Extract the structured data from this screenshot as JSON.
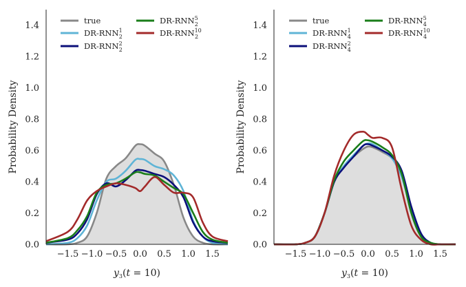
{
  "chart_data": [
    {
      "type": "line",
      "xlabel": "y3(t = 10)",
      "ylabel": "Probability Density",
      "xlim": [
        -1.95,
        1.82
      ],
      "ylim": [
        0,
        1.5
      ],
      "xticks": [
        "−1.5",
        "−1.0",
        "−0.5",
        "0.0",
        "0.5",
        "1.0",
        "1.5"
      ],
      "yticks": [
        "0.0",
        "0.2",
        "0.4",
        "0.6",
        "0.8",
        "1.0",
        "1.2",
        "1.4"
      ],
      "grid": false,
      "legend_position": "top",
      "x": [
        -1.95,
        -1.5,
        -1.3,
        -1.1,
        -0.9,
        -0.7,
        -0.5,
        -0.3,
        -0.1,
        0.0,
        0.1,
        0.3,
        0.5,
        0.7,
        0.9,
        1.1,
        1.3,
        1.5,
        1.82
      ],
      "series": [
        {
          "name_main": "true",
          "name_sub": "",
          "name_sup": "",
          "color": "#888888",
          "filled": true,
          "values": [
            0.0,
            0.0,
            0.01,
            0.05,
            0.2,
            0.42,
            0.5,
            0.55,
            0.63,
            0.64,
            0.63,
            0.58,
            0.53,
            0.38,
            0.17,
            0.05,
            0.01,
            0.0,
            0.0
          ]
        },
        {
          "name_main": "DR-RNN",
          "name_sub": "2",
          "name_sup": "1",
          "color": "#5fb4d6",
          "filled": false,
          "values": [
            0.0,
            0.01,
            0.04,
            0.12,
            0.28,
            0.4,
            0.42,
            0.47,
            0.54,
            0.545,
            0.54,
            0.5,
            0.48,
            0.44,
            0.34,
            0.15,
            0.05,
            0.01,
            0.0
          ]
        },
        {
          "name_main": "DR-RNN",
          "name_sub": "2",
          "name_sup": "2",
          "color": "#0b0f7a",
          "filled": false,
          "values": [
            0.01,
            0.03,
            0.07,
            0.16,
            0.32,
            0.39,
            0.37,
            0.41,
            0.47,
            0.475,
            0.47,
            0.45,
            0.43,
            0.38,
            0.3,
            0.14,
            0.05,
            0.02,
            0.01
          ]
        },
        {
          "name_main": "DR-RNN",
          "name_sub": "2",
          "name_sup": "5",
          "color": "#1a7d1a",
          "filled": false,
          "values": [
            0.01,
            0.04,
            0.09,
            0.18,
            0.33,
            0.38,
            0.39,
            0.42,
            0.46,
            0.46,
            0.45,
            0.44,
            0.4,
            0.36,
            0.32,
            0.2,
            0.08,
            0.03,
            0.01
          ]
        },
        {
          "name_main": "DR-RNN",
          "name_sub": "2",
          "name_sup": "10",
          "color": "#a32a2a",
          "filled": false,
          "values": [
            0.02,
            0.08,
            0.16,
            0.28,
            0.34,
            0.37,
            0.39,
            0.38,
            0.36,
            0.34,
            0.37,
            0.43,
            0.38,
            0.33,
            0.33,
            0.3,
            0.14,
            0.05,
            0.02
          ]
        }
      ]
    },
    {
      "type": "line",
      "xlabel": "y3(t = 10)",
      "ylabel": "Probability Density",
      "xlim": [
        -1.95,
        1.82
      ],
      "ylim": [
        0,
        1.5
      ],
      "xticks": [
        "−1.5",
        "−1.0",
        "−0.5",
        "0.0",
        "0.5",
        "1.0",
        "1.5"
      ],
      "yticks": [
        "0.0",
        "0.2",
        "0.4",
        "0.6",
        "0.8",
        "1.0",
        "1.2",
        "1.4"
      ],
      "grid": false,
      "legend_position": "top",
      "x": [
        -1.95,
        -1.5,
        -1.3,
        -1.1,
        -0.9,
        -0.7,
        -0.5,
        -0.3,
        -0.1,
        0.0,
        0.1,
        0.3,
        0.5,
        0.7,
        0.9,
        1.1,
        1.3,
        1.5,
        1.82
      ],
      "series": [
        {
          "name_main": "true",
          "name_sub": "",
          "name_sup": "",
          "color": "#888888",
          "filled": true,
          "values": [
            0.0,
            0.0,
            0.01,
            0.05,
            0.2,
            0.4,
            0.5,
            0.56,
            0.61,
            0.625,
            0.62,
            0.59,
            0.55,
            0.45,
            0.2,
            0.05,
            0.01,
            0.0,
            0.0
          ]
        },
        {
          "name_main": "DR-RNN",
          "name_sub": "4",
          "name_sup": "1",
          "color": "#5fb4d6",
          "filled": false,
          "values": [
            0.0,
            0.0,
            0.01,
            0.05,
            0.2,
            0.4,
            0.5,
            0.57,
            0.63,
            0.645,
            0.64,
            0.6,
            0.55,
            0.43,
            0.22,
            0.06,
            0.01,
            0.0,
            0.0
          ]
        },
        {
          "name_main": "DR-RNN",
          "name_sub": "4",
          "name_sup": "2",
          "color": "#0b0f7a",
          "filled": false,
          "values": [
            0.0,
            0.0,
            0.01,
            0.05,
            0.2,
            0.4,
            0.49,
            0.56,
            0.63,
            0.64,
            0.63,
            0.6,
            0.56,
            0.47,
            0.24,
            0.07,
            0.01,
            0.0,
            0.0
          ]
        },
        {
          "name_main": "DR-RNN",
          "name_sub": "4",
          "name_sup": "5",
          "color": "#1a7d1a",
          "filled": false,
          "values": [
            0.0,
            0.0,
            0.01,
            0.05,
            0.2,
            0.41,
            0.53,
            0.6,
            0.66,
            0.665,
            0.655,
            0.62,
            0.57,
            0.45,
            0.2,
            0.05,
            0.01,
            0.0,
            0.0
          ]
        },
        {
          "name_main": "DR-RNN",
          "name_sub": "4",
          "name_sup": "10",
          "color": "#a32a2a",
          "filled": false,
          "values": [
            0.0,
            0.0,
            0.01,
            0.05,
            0.2,
            0.44,
            0.6,
            0.7,
            0.72,
            0.7,
            0.68,
            0.68,
            0.62,
            0.35,
            0.12,
            0.03,
            0.0,
            0.0,
            0.0
          ]
        }
      ]
    }
  ]
}
